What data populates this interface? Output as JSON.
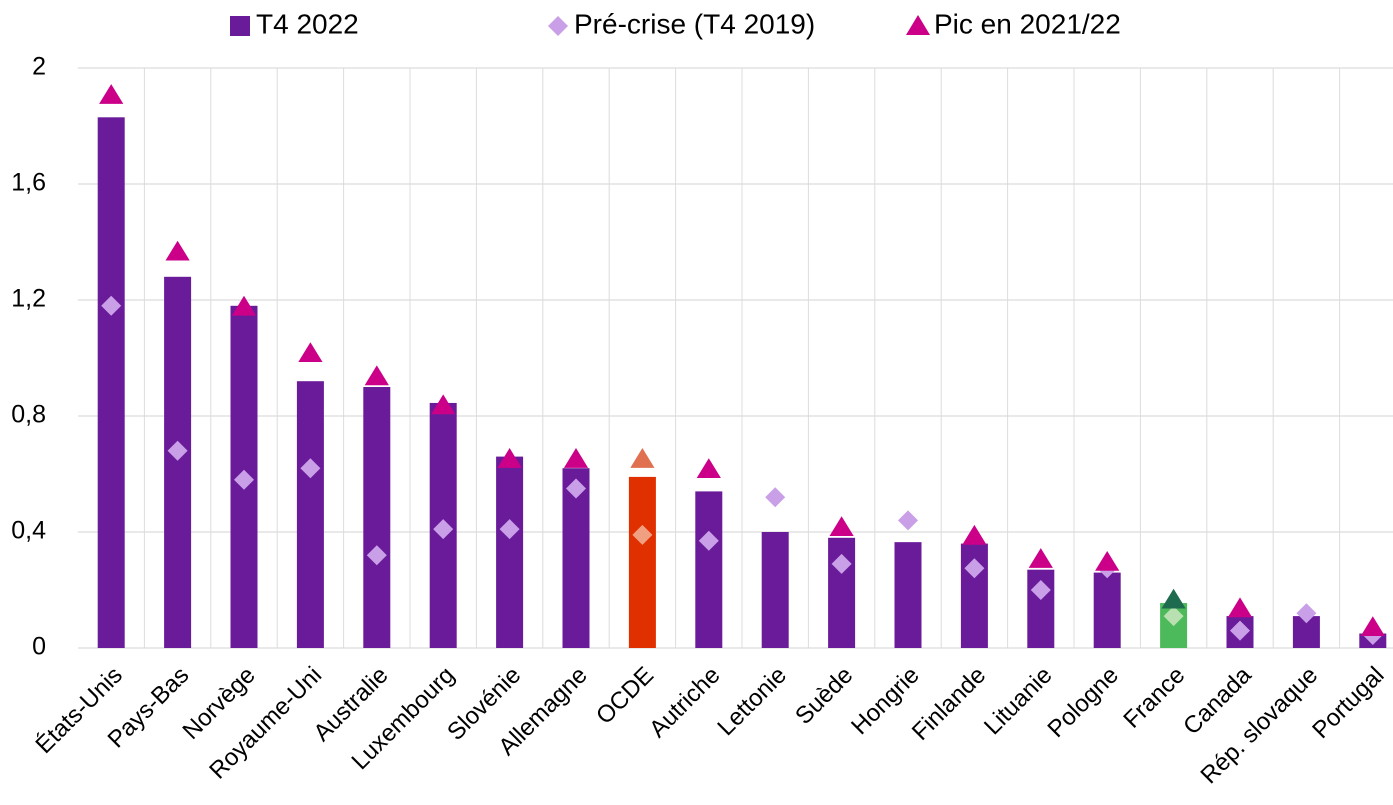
{
  "chart_data": {
    "type": "bar",
    "categories": [
      "États-Unis",
      "Pays-Bas",
      "Norvège",
      "Royaume-Uni",
      "Australie",
      "Luxembourg",
      "Slovénie",
      "Allemagne",
      "OCDE",
      "Autriche",
      "Lettonie",
      "Suède",
      "Hongrie",
      "Finlande",
      "Lituanie",
      "Pologne",
      "France",
      "Canada",
      "Rép. slovaque",
      "Portugal"
    ],
    "series": [
      {
        "name": "T4 2022",
        "marker": "bar",
        "color": "#6a1b9a",
        "colors": [
          "#6a1b9a",
          "#6a1b9a",
          "#6a1b9a",
          "#6a1b9a",
          "#6a1b9a",
          "#6a1b9a",
          "#6a1b9a",
          "#6a1b9a",
          "#e03000",
          "#6a1b9a",
          "#6a1b9a",
          "#6a1b9a",
          "#6a1b9a",
          "#6a1b9a",
          "#6a1b9a",
          "#6a1b9a",
          "#4cba5a",
          "#6a1b9a",
          "#6a1b9a",
          "#6a1b9a"
        ],
        "values": [
          1.83,
          1.28,
          1.18,
          0.92,
          0.9,
          0.845,
          0.66,
          0.62,
          0.59,
          0.54,
          0.4,
          0.38,
          0.365,
          0.36,
          0.27,
          0.26,
          0.155,
          0.11,
          0.11,
          0.05
        ]
      },
      {
        "name": "Pré-crise (T4 2019)",
        "marker": "diamond",
        "color": "#c9a0e8",
        "colors": [
          "#c9a0e8",
          "#c9a0e8",
          "#c9a0e8",
          "#c9a0e8",
          "#c9a0e8",
          "#c9a0e8",
          "#c9a0e8",
          "#c9a0e8",
          "#f0a080",
          "#c9a0e8",
          "#c9a0e8",
          "#c9a0e8",
          "#c9a0e8",
          "#c9a0e8",
          "#c9a0e8",
          "#c9a0e8",
          "#b8e0b0",
          "#c9a0e8",
          "#c9a0e8",
          "#c9a0e8"
        ],
        "values": [
          1.18,
          0.68,
          0.58,
          0.62,
          0.32,
          0.41,
          0.41,
          0.55,
          0.39,
          0.37,
          0.52,
          0.29,
          0.44,
          0.275,
          0.2,
          0.275,
          0.11,
          0.06,
          0.12,
          0.045
        ]
      },
      {
        "name": "Pic en 2021/22",
        "marker": "triangle",
        "color": "#cc0088",
        "colors": [
          "#cc0088",
          "#cc0088",
          "#cc0088",
          "#cc0088",
          "#cc0088",
          "#cc0088",
          "#cc0088",
          "#cc0088",
          "#e07050",
          "#cc0088",
          "#cc0088",
          "#cc0088",
          "#cc0088",
          "#cc0088",
          "#cc0088",
          "#cc0088",
          "#1e6b50",
          "#cc0088",
          "#cc0088",
          "#cc0088"
        ],
        "values": [
          1.91,
          1.37,
          1.18,
          1.02,
          0.94,
          0.84,
          0.655,
          0.655,
          0.655,
          0.62,
          null,
          0.42,
          null,
          0.39,
          0.31,
          0.3,
          0.17,
          0.14,
          null,
          0.075
        ]
      }
    ],
    "ylim": [
      0,
      2
    ],
    "yticks": [
      0,
      {
        "value": 0.4,
        "label": "0,4"
      },
      {
        "value": 0.8,
        "label": "0,8"
      },
      {
        "value": 1.2,
        "label": "1,2"
      },
      {
        "value": 1.6,
        "label": "1,6"
      },
      2
    ],
    "grid": true,
    "legend": "top"
  }
}
